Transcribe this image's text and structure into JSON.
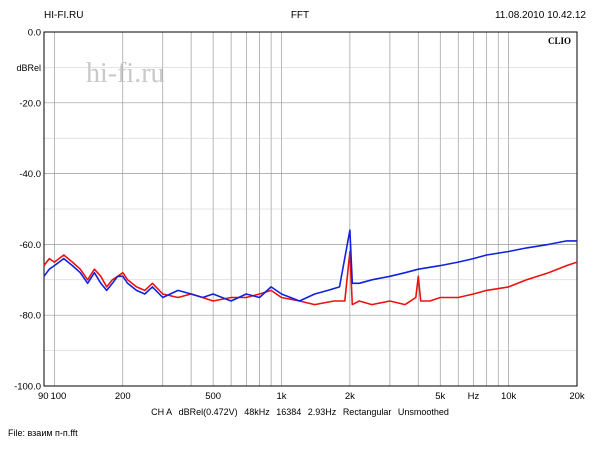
{
  "header": {
    "left": "HI-FI.RU",
    "center": "FFT",
    "right": "11.08.2010 10.42.12"
  },
  "footer": {
    "channel": "CH A",
    "unit": "dBRel(0.472V)",
    "rate": "48kHz",
    "points": "16384",
    "resolution": "2.93Hz",
    "window": "Rectangular",
    "smoothing": "Unsmoothed"
  },
  "file_line": "File: взаим п-п.fft",
  "chart_data": {
    "type": "line",
    "brand": "CLIO",
    "watermark": "hi-fi.ru",
    "ylabel": "dBRel",
    "xlabel": "Hz",
    "x_scale": "log",
    "xlim": [
      90,
      20000
    ],
    "ylim": [
      -100,
      0
    ],
    "grid": true,
    "y_ticks": [
      "0.0",
      "-20.0",
      "-40.0",
      "-60.0",
      "-80.0",
      "-100.0"
    ],
    "y_tick_values": [
      0,
      -20,
      -40,
      -60,
      -80,
      -100
    ],
    "x_tick_labels": [
      {
        "label": "90",
        "value": 90
      },
      {
        "label": "100",
        "value": 100
      },
      {
        "label": "200",
        "value": 200
      },
      {
        "label": "500",
        "value": 500
      },
      {
        "label": "1k",
        "value": 1000
      },
      {
        "label": "2k",
        "value": 2000
      },
      {
        "label": "5k",
        "value": 5000
      },
      {
        "label": "Hz",
        "value": 7000
      },
      {
        "label": "10k",
        "value": 10000
      },
      {
        "label": "20k",
        "value": 20000
      }
    ],
    "series": [
      {
        "color": "#ee1111",
        "points": [
          [
            90,
            -66
          ],
          [
            95,
            -64
          ],
          [
            100,
            -65
          ],
          [
            110,
            -63
          ],
          [
            120,
            -65
          ],
          [
            130,
            -67
          ],
          [
            140,
            -70
          ],
          [
            150,
            -67
          ],
          [
            160,
            -69
          ],
          [
            170,
            -72
          ],
          [
            180,
            -70
          ],
          [
            190,
            -69
          ],
          [
            200,
            -68
          ],
          [
            210,
            -70
          ],
          [
            230,
            -72
          ],
          [
            250,
            -73
          ],
          [
            270,
            -71
          ],
          [
            300,
            -74
          ],
          [
            350,
            -75
          ],
          [
            400,
            -74
          ],
          [
            450,
            -75
          ],
          [
            500,
            -76
          ],
          [
            600,
            -75
          ],
          [
            700,
            -75
          ],
          [
            800,
            -74
          ],
          [
            900,
            -73
          ],
          [
            1000,
            -75
          ],
          [
            1200,
            -76
          ],
          [
            1400,
            -77
          ],
          [
            1700,
            -76
          ],
          [
            1900,
            -76
          ],
          [
            2000,
            -62
          ],
          [
            2050,
            -77
          ],
          [
            2200,
            -76
          ],
          [
            2500,
            -77
          ],
          [
            3000,
            -76
          ],
          [
            3500,
            -77
          ],
          [
            3900,
            -75
          ],
          [
            4000,
            -69
          ],
          [
            4100,
            -76
          ],
          [
            4500,
            -76
          ],
          [
            5000,
            -75
          ],
          [
            6000,
            -75
          ],
          [
            7000,
            -74
          ],
          [
            8000,
            -73
          ],
          [
            10000,
            -72
          ],
          [
            12000,
            -70
          ],
          [
            15000,
            -68
          ],
          [
            18000,
            -66
          ],
          [
            20000,
            -65
          ]
        ]
      },
      {
        "color": "#1122dd",
        "points": [
          [
            90,
            -69
          ],
          [
            95,
            -67
          ],
          [
            100,
            -66
          ],
          [
            110,
            -64
          ],
          [
            120,
            -66
          ],
          [
            130,
            -68
          ],
          [
            140,
            -71
          ],
          [
            150,
            -68
          ],
          [
            160,
            -71
          ],
          [
            170,
            -73
          ],
          [
            180,
            -71
          ],
          [
            190,
            -69
          ],
          [
            200,
            -69
          ],
          [
            210,
            -71
          ],
          [
            230,
            -73
          ],
          [
            250,
            -74
          ],
          [
            270,
            -72
          ],
          [
            300,
            -75
          ],
          [
            350,
            -73
          ],
          [
            400,
            -74
          ],
          [
            450,
            -75
          ],
          [
            500,
            -74
          ],
          [
            600,
            -76
          ],
          [
            700,
            -74
          ],
          [
            800,
            -75
          ],
          [
            900,
            -72
          ],
          [
            1000,
            -74
          ],
          [
            1200,
            -76
          ],
          [
            1400,
            -74
          ],
          [
            1600,
            -73
          ],
          [
            1800,
            -72
          ],
          [
            2000,
            -56
          ],
          [
            2050,
            -71
          ],
          [
            2200,
            -71
          ],
          [
            2500,
            -70
          ],
          [
            3000,
            -69
          ],
          [
            3500,
            -68
          ],
          [
            4000,
            -67
          ],
          [
            5000,
            -66
          ],
          [
            6000,
            -65
          ],
          [
            7000,
            -64
          ],
          [
            8000,
            -63
          ],
          [
            10000,
            -62
          ],
          [
            12000,
            -61
          ],
          [
            15000,
            -60
          ],
          [
            18000,
            -59
          ],
          [
            20000,
            -59
          ]
        ]
      }
    ]
  }
}
